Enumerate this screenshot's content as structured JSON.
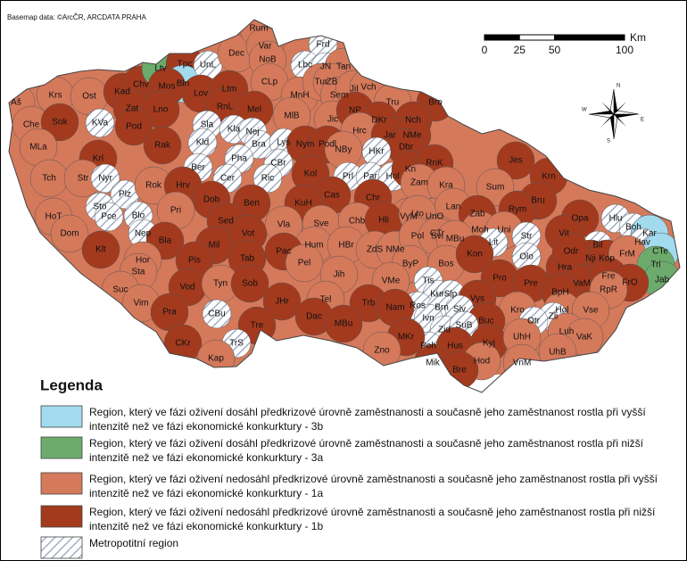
{
  "attribution": "Basemap data: ©ArcČR, ARCDATA PRAHA",
  "scale": {
    "ticks": [
      0,
      25,
      50,
      100
    ],
    "unit": "Km"
  },
  "north_arrow": {
    "n": "N",
    "e": "E",
    "s": "S",
    "w": "W"
  },
  "legend": {
    "title": "Legenda",
    "items": [
      {
        "lines": [
          "Region, který ve fázi oživení dosáhl předkrizové úrovně zaměstnanosti a současně jeho zaměstnanost rostla při vyšší",
          "intenzitě než ve fázi ekonomické konkurktury - 3b"
        ],
        "color": "#a3dbee"
      },
      {
        "lines": [
          "Region, který ve fázi oživení dosáhl předkrizové úrovně zaměstnanosti a současně jeho zaměstnanost rostla při nižší",
          "intenzitě než ve fázi ekonomické konkurktury - 3a"
        ],
        "color": "#6cab6c"
      },
      {
        "lines": [
          "Region, který ve fázi oživení nedosáhl předkrizové úrovně zaměstnanosti a současně jeho zaměstnanost rostla při vyšší",
          "intenzitě než ve fázi ekonomické konkurktury - 1a"
        ],
        "color": "#d5795b"
      },
      {
        "lines": [
          "Region, který ve fázi oživení nedosáhl předkrizové úrovně zaměstnanosti a současně jeho zaměstnanost rostla při nižší",
          "intenzitě než ve fázi ekonomické konkurktury - 1b"
        ],
        "color": "#a33a1e"
      },
      {
        "lines": [
          "Metropotitní region"
        ],
        "color": "hatch"
      }
    ]
  },
  "regions": [
    {
      "label": "Aš",
      "class": 2
    },
    {
      "label": "Krs",
      "class": 2
    },
    {
      "label": "Che",
      "class": 2
    },
    {
      "label": "Sok",
      "class": 3
    },
    {
      "label": "Ost",
      "class": 2
    },
    {
      "label": "KVa",
      "class": 4
    },
    {
      "label": "Kad",
      "class": 3
    },
    {
      "label": "Chv",
      "class": 3
    },
    {
      "label": "Ltv",
      "class": 1
    },
    {
      "label": "Tpc",
      "class": 3
    },
    {
      "label": "Bln",
      "class": 0
    },
    {
      "label": "UnL",
      "class": 4
    },
    {
      "label": "Dec",
      "class": 2
    },
    {
      "label": "Rum",
      "class": 2
    },
    {
      "label": "Var",
      "class": 2
    },
    {
      "label": "NoB",
      "class": 2
    },
    {
      "label": "Frd",
      "class": 4
    },
    {
      "label": "Lbc",
      "class": 4
    },
    {
      "label": "JN",
      "class": 4
    },
    {
      "label": "Tan",
      "class": 2
    },
    {
      "label": "Mos",
      "class": 3
    },
    {
      "label": "Zat",
      "class": 3
    },
    {
      "label": "Lno",
      "class": 3
    },
    {
      "label": "Lov",
      "class": 3
    },
    {
      "label": "Ltm",
      "class": 3
    },
    {
      "label": "CLp",
      "class": 2
    },
    {
      "label": "MnH",
      "class": 2
    },
    {
      "label": "Tur",
      "class": 2
    },
    {
      "label": "ZB",
      "class": 2
    },
    {
      "label": "Sem",
      "class": 2
    },
    {
      "label": "JiI",
      "class": 2
    },
    {
      "label": "Vch",
      "class": 2
    },
    {
      "label": "Tru",
      "class": 2
    },
    {
      "label": "Bro",
      "class": 3
    },
    {
      "label": "Pod",
      "class": 3
    },
    {
      "label": "RnL",
      "class": 3
    },
    {
      "label": "Mel",
      "class": 3
    },
    {
      "label": "MlB",
      "class": 2
    },
    {
      "label": "Jic",
      "class": 2
    },
    {
      "label": "NP",
      "class": 3
    },
    {
      "label": "DKr",
      "class": 3
    },
    {
      "label": "Nch",
      "class": 3
    },
    {
      "label": "MLa",
      "class": 2
    },
    {
      "label": "Sla",
      "class": 4
    },
    {
      "label": "Kla",
      "class": 4
    },
    {
      "label": "Nej",
      "class": 4
    },
    {
      "label": "Kld",
      "class": 4
    },
    {
      "label": "Bra",
      "class": 4
    },
    {
      "label": "Lys",
      "class": 4
    },
    {
      "label": "Nym",
      "class": 3
    },
    {
      "label": "Podl",
      "class": 3
    },
    {
      "label": "Hrc",
      "class": 2
    },
    {
      "label": "Jar",
      "class": 3
    },
    {
      "label": "NMe",
      "class": 3
    },
    {
      "label": "Dbr",
      "class": 3
    },
    {
      "label": "Krl",
      "class": 3
    },
    {
      "label": "Rak",
      "class": 3
    },
    {
      "label": "Pha",
      "class": 4
    },
    {
      "label": "CBr",
      "class": 4
    },
    {
      "label": "NBy",
      "class": 2
    },
    {
      "label": "HKr",
      "class": 4
    },
    {
      "label": "Tch",
      "class": 2
    },
    {
      "label": "Str",
      "class": 2
    },
    {
      "label": "Nyr",
      "class": 4
    },
    {
      "label": "Ber",
      "class": 4
    },
    {
      "label": "Cer",
      "class": 4
    },
    {
      "label": "Ric",
      "class": 4
    },
    {
      "label": "Kol",
      "class": 3
    },
    {
      "label": "Prl",
      "class": 4
    },
    {
      "label": "Par",
      "class": 4
    },
    {
      "label": "Hol",
      "class": 4
    },
    {
      "label": "Kn",
      "class": 3
    },
    {
      "label": "RnK",
      "class": 3
    },
    {
      "label": "Jes",
      "class": 3
    },
    {
      "label": "Plz",
      "class": 4
    },
    {
      "label": "Rok",
      "class": 2
    },
    {
      "label": "Hrv",
      "class": 3
    },
    {
      "label": "Dob",
      "class": 3
    },
    {
      "label": "Cas",
      "class": 3
    },
    {
      "label": "Zam",
      "class": 2
    },
    {
      "label": "Kra",
      "class": 2
    },
    {
      "label": "Sum",
      "class": 2
    },
    {
      "label": "Krn",
      "class": 3
    },
    {
      "label": "Bru",
      "class": 3
    },
    {
      "label": "HoT",
      "class": 2
    },
    {
      "label": "Sto",
      "class": 4
    },
    {
      "label": "Pce",
      "class": 4
    },
    {
      "label": "Blo",
      "class": 4
    },
    {
      "label": "Pri",
      "class": 2
    },
    {
      "label": "Ben",
      "class": 3
    },
    {
      "label": "KuH",
      "class": 3
    },
    {
      "label": "Chr",
      "class": 3
    },
    {
      "label": "VyM",
      "class": 2
    },
    {
      "label": "UnO",
      "class": 2
    },
    {
      "label": "Lan",
      "class": 2
    },
    {
      "label": "Zab",
      "class": 3
    },
    {
      "label": "Rym",
      "class": 3
    },
    {
      "label": "Opa",
      "class": 3
    },
    {
      "label": "Hlu",
      "class": 4
    },
    {
      "label": "Boh",
      "class": 4
    },
    {
      "label": "Kar",
      "class": 0
    },
    {
      "label": "Dom",
      "class": 2
    },
    {
      "label": "Nep",
      "class": 4
    },
    {
      "label": "Sed",
      "class": 3
    },
    {
      "label": "Vla",
      "class": 2
    },
    {
      "label": "Sve",
      "class": 2
    },
    {
      "label": "Chb",
      "class": 2
    },
    {
      "label": "Hli",
      "class": 3
    },
    {
      "label": "Lto",
      "class": 2
    },
    {
      "label": "CTr",
      "class": 2
    },
    {
      "label": "Moh",
      "class": 2
    },
    {
      "label": "Uni",
      "class": 2
    },
    {
      "label": "Str",
      "class": 4
    },
    {
      "label": "Lit",
      "class": 4
    },
    {
      "label": "Vit",
      "class": 3
    },
    {
      "label": "Bil",
      "class": 4
    },
    {
      "label": "Hav",
      "class": 4
    },
    {
      "label": "CTe",
      "class": 0
    },
    {
      "label": "Klt",
      "class": 3
    },
    {
      "label": "Bla",
      "class": 3
    },
    {
      "label": "Mil",
      "class": 3
    },
    {
      "label": "Vot",
      "class": 3
    },
    {
      "label": "Hum",
      "class": 2
    },
    {
      "label": "HBr",
      "class": 2
    },
    {
      "label": "ZdS",
      "class": 2
    },
    {
      "label": "NMe",
      "class": 2
    },
    {
      "label": "Pol",
      "class": 2
    },
    {
      "label": "Svi",
      "class": 2
    },
    {
      "label": "MBu",
      "class": 2
    },
    {
      "label": "Olo",
      "class": 4
    },
    {
      "label": "Hra",
      "class": 3
    },
    {
      "label": "Nji",
      "class": 3
    },
    {
      "label": "Kop",
      "class": 3
    },
    {
      "label": "FrM",
      "class": 2
    },
    {
      "label": "Tri",
      "class": 1
    },
    {
      "label": "Jab",
      "class": 1
    },
    {
      "label": "Hor",
      "class": 2
    },
    {
      "label": "Pis",
      "class": 3
    },
    {
      "label": "Tab",
      "class": 3
    },
    {
      "label": "Pac",
      "class": 3
    },
    {
      "label": "Pel",
      "class": 2
    },
    {
      "label": "Jih",
      "class": 2
    },
    {
      "label": "ByP",
      "class": 2
    },
    {
      "label": "Bos",
      "class": 2
    },
    {
      "label": "Kon",
      "class": 3
    },
    {
      "label": "Pro",
      "class": 3
    },
    {
      "label": "Pre",
      "class": 3
    },
    {
      "label": "Odr",
      "class": 3
    },
    {
      "label": "VaM",
      "class": 3
    },
    {
      "label": "Fre",
      "class": 3
    },
    {
      "label": "FrO",
      "class": 3
    },
    {
      "label": "RpR",
      "class": 2
    },
    {
      "label": "BpH",
      "class": 3
    },
    {
      "label": "Sta",
      "class": 2
    },
    {
      "label": "Suc",
      "class": 2
    },
    {
      "label": "Vim",
      "class": 2
    },
    {
      "label": "Vod",
      "class": 3
    },
    {
      "label": "Tyn",
      "class": 2
    },
    {
      "label": "Sob",
      "class": 3
    },
    {
      "label": "VMe",
      "class": 2
    },
    {
      "label": "Tis",
      "class": 4
    },
    {
      "label": "Kur",
      "class": 4
    },
    {
      "label": "Slp",
      "class": 4
    },
    {
      "label": "Vys",
      "class": 3
    },
    {
      "label": "Kro",
      "class": 2
    },
    {
      "label": "Hol",
      "class": 2
    },
    {
      "label": "Zli",
      "class": 4
    },
    {
      "label": "Vse",
      "class": 2
    },
    {
      "label": "Ros",
      "class": 4
    },
    {
      "label": "Brn",
      "class": 4
    },
    {
      "label": "Slv",
      "class": 4
    },
    {
      "label": "Buc",
      "class": 3
    },
    {
      "label": "Otr",
      "class": 4
    },
    {
      "label": "Luh",
      "class": 2
    },
    {
      "label": "VaK",
      "class": 2
    },
    {
      "label": "CBu",
      "class": 4
    },
    {
      "label": "JHr",
      "class": 3
    },
    {
      "label": "Tel",
      "class": 2
    },
    {
      "label": "Trb",
      "class": 3
    },
    {
      "label": "Nam",
      "class": 3
    },
    {
      "label": "Ivn",
      "class": 4
    },
    {
      "label": "Zid",
      "class": 4
    },
    {
      "label": "SuB",
      "class": 4
    },
    {
      "label": "Kyj",
      "class": 3
    },
    {
      "label": "UhH",
      "class": 2
    },
    {
      "label": "Pra",
      "class": 3
    },
    {
      "label": "Dac",
      "class": 3
    },
    {
      "label": "MBu",
      "class": 3
    },
    {
      "label": "Tre",
      "class": 3
    },
    {
      "label": "Poh",
      "class": 4
    },
    {
      "label": "Hus",
      "class": 3
    },
    {
      "label": "UhB",
      "class": 2
    },
    {
      "label": "CKr",
      "class": 3
    },
    {
      "label": "TrS",
      "class": 4
    },
    {
      "label": "MKr",
      "class": 3
    },
    {
      "label": "VnM",
      "class": 2
    },
    {
      "label": "Hod",
      "class": 2
    },
    {
      "label": "Zno",
      "class": 2
    },
    {
      "label": "Kap",
      "class": 2
    },
    {
      "label": "Mik",
      "class": 3
    },
    {
      "label": "Bre",
      "class": 3
    }
  ]
}
